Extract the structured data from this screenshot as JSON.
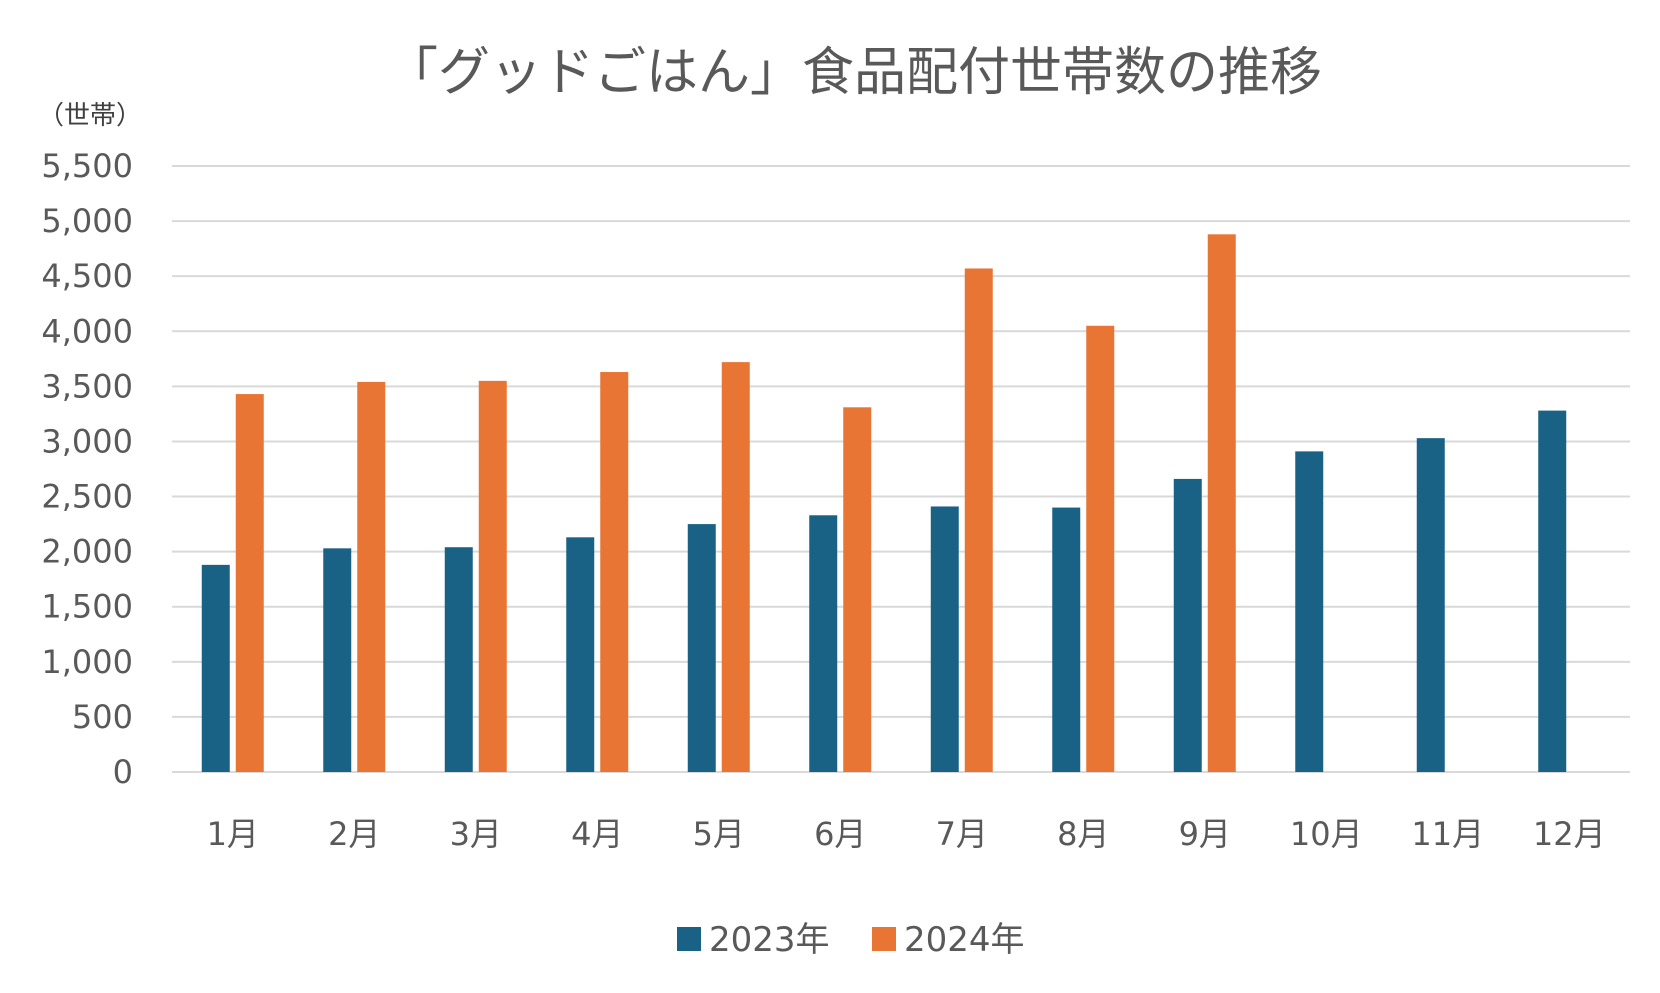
{
  "chart_data": {
    "type": "bar",
    "title": "「グッドごはん」食品配付世帯数の推移",
    "ylabel": "（世帯）",
    "xlabel": "",
    "ylim": [
      0,
      5500
    ],
    "yticks": [
      0,
      500,
      1000,
      1500,
      2000,
      2500,
      3000,
      3500,
      4000,
      4500,
      5000,
      5500
    ],
    "ytick_labels": [
      "0",
      "500",
      "1,000",
      "1,500",
      "2,000",
      "2,500",
      "3,000",
      "3,500",
      "4,000",
      "4,500",
      "5,000",
      "5,500"
    ],
    "grid": true,
    "legend_position": "bottom-center",
    "categories": [
      "1月",
      "2月",
      "3月",
      "4月",
      "5月",
      "6月",
      "7月",
      "8月",
      "9月",
      "10月",
      "11月",
      "12月"
    ],
    "series": [
      {
        "name": "2023年",
        "color": "#1a6285",
        "values": [
          1880,
          2030,
          2040,
          2130,
          2250,
          2330,
          2410,
          2400,
          2660,
          2910,
          3030,
          3280
        ]
      },
      {
        "name": "2024年",
        "color": "#e87534",
        "values": [
          3430,
          3540,
          3550,
          3630,
          3720,
          3310,
          4570,
          4050,
          4880,
          null,
          null,
          null
        ]
      }
    ]
  }
}
